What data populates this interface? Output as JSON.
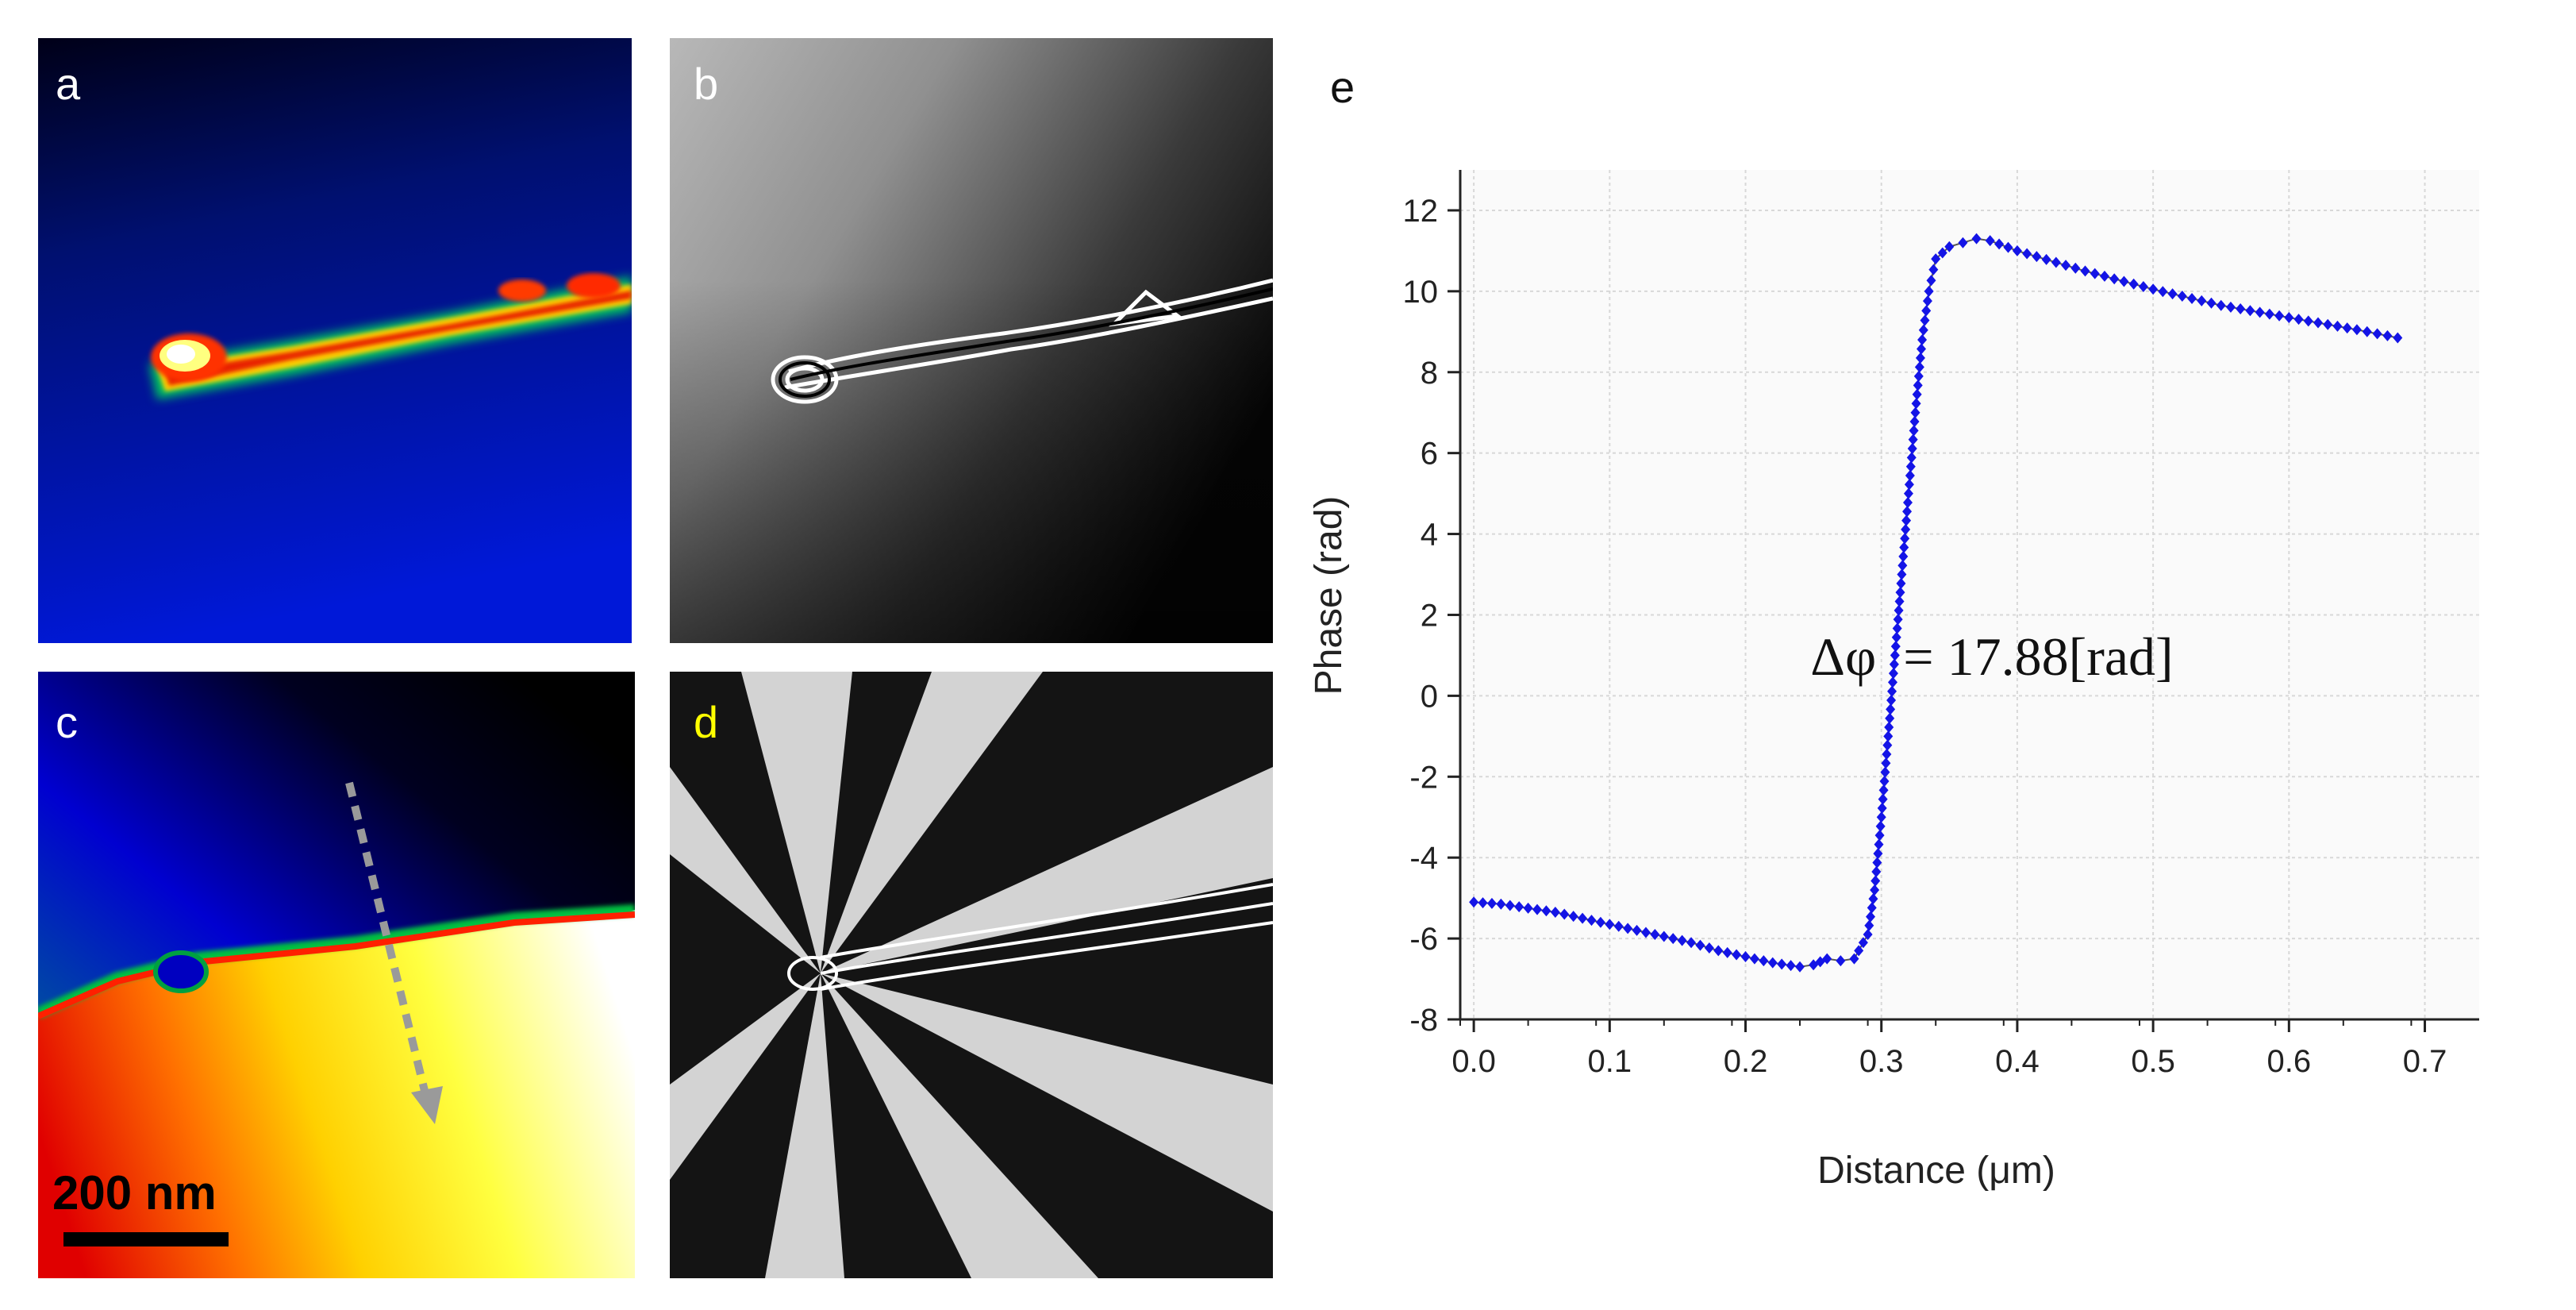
{
  "panels": {
    "a": {
      "label": "a",
      "label_color": "#ffffff"
    },
    "b": {
      "label": "b",
      "label_color": "#ffffff"
    },
    "c": {
      "label": "c",
      "label_color": "#ffffff",
      "scale_bar": "200 nm"
    },
    "d": {
      "label": "d",
      "label_color": "#ffff00"
    },
    "e": {
      "label": "e",
      "label_color": "#111111"
    }
  },
  "chart_data": {
    "type": "scatter",
    "xlabel": "Distance (μm)",
    "ylabel": "Phase (rad)",
    "xlim": [
      -0.01,
      0.74
    ],
    "ylim": [
      -8,
      13
    ],
    "xticks": [
      "0.0",
      "0.1",
      "0.2",
      "0.3",
      "0.4",
      "0.5",
      "0.6",
      "0.7"
    ],
    "yticks": [
      "-8",
      "-6",
      "-4",
      "-2",
      "0",
      "2",
      "4",
      "6",
      "8",
      "10",
      "12"
    ],
    "grid": true,
    "marker_color": "#1414e6",
    "annotation": "Δφ  = 17.88[rad]",
    "series": [
      {
        "x": [
          0.0,
          0.02,
          0.04,
          0.06,
          0.08,
          0.1,
          0.12,
          0.14,
          0.16,
          0.18,
          0.2,
          0.22,
          0.24,
          0.25,
          0.26,
          0.27,
          0.28,
          0.29,
          0.295,
          0.3,
          0.305,
          0.31,
          0.315,
          0.32,
          0.325,
          0.33,
          0.335,
          0.34,
          0.35,
          0.36,
          0.37,
          0.38,
          0.4,
          0.45,
          0.5,
          0.55,
          0.6,
          0.65,
          0.68
        ],
        "y": [
          -5.1,
          -5.15,
          -5.25,
          -5.35,
          -5.5,
          -5.65,
          -5.8,
          -5.95,
          -6.1,
          -6.3,
          -6.45,
          -6.6,
          -6.7,
          -6.65,
          -6.5,
          -6.55,
          -6.5,
          -5.9,
          -4.8,
          -3.0,
          -1.0,
          1.0,
          3.0,
          5.0,
          7.0,
          8.8,
          10.0,
          10.8,
          11.1,
          11.2,
          11.3,
          11.25,
          11.0,
          10.5,
          10.05,
          9.65,
          9.35,
          9.05,
          8.85
        ]
      }
    ]
  }
}
